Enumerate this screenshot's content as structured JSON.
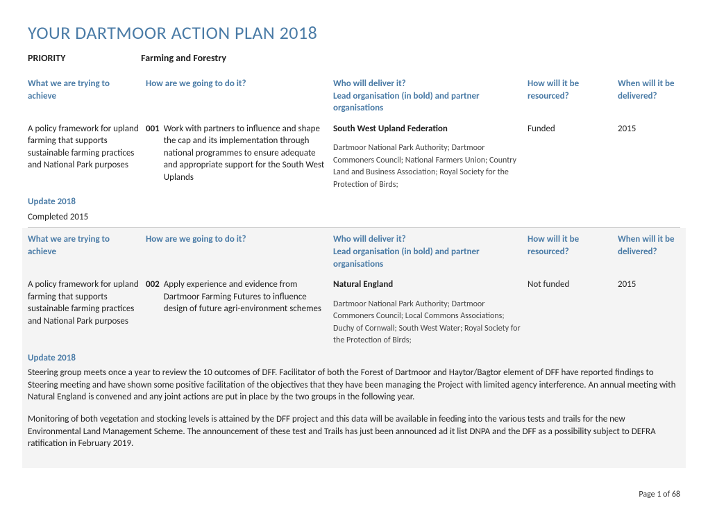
{
  "title": "YOUR DARTMOOR ACTION PLAN 2018",
  "priority": {
    "label": "PRIORITY",
    "value": "Farming and Forestry"
  },
  "headers": {
    "achieve": "What we are trying to achieve",
    "how": "How are we going to do it?",
    "who": "Who will deliver it?",
    "who_sub": "Lead organisation (in bold) and partner organisations",
    "resourced": "How will it be resourced?",
    "when": "When will it be delivered?"
  },
  "items": [
    {
      "achieve": "A policy framework for upland farming that supports sustainable farming practices and National Park purposes",
      "num": "001",
      "how": "Work with partners to influence and shape the cap and its implementation through national programmes to ensure adequate and appropriate support for the South West Uplands",
      "lead": "South West Upland Federation",
      "partners": "Dartmoor National Park Authority; Dartmoor Commoners Council; National Farmers Union; Country Land and Business Association; Royal Society for the Protection of Birds;",
      "resourced": "Funded",
      "when": "2015",
      "update_label": "Update 2018",
      "update": "Completed 2015"
    },
    {
      "achieve": "A policy framework for upland farming that supports sustainable farming practices and National Park purposes",
      "num": "002",
      "how": "Apply experience and evidence from Dartmoor Farming Futures to influence design of future agri-environment schemes",
      "lead": "Natural England",
      "partners": "Dartmoor National Park Authority; Dartmoor Commoners Council; Local Commons Associations; Duchy of Cornwall; South West Water; Royal Society for the Protection of Birds;",
      "resourced": "Not funded",
      "when": "2015",
      "update_label": "Update 2018",
      "update_p1": "Steering group meets once a year to review the 10 outcomes of DFF. Facilitator of both the Forest of Dartmoor and Haytor/Bagtor element of DFF have reported findings to Steering meeting and have shown some positive facilitation of the objectives that they have been managing the Project with limited  agency interference. An annual meeting with Natural England is convened and any joint actions are put in place by the two groups in the following year.",
      "update_p2": "Monitoring of both vegetation and stocking levels is attained by the DFF project and this data will be available in feeding into the various tests and trails for the new Environmental Land Management Scheme. The announcement of these test and Trails has just been announced ad it list DNPA and the DFF as a possibility subject to DEFRA ratification in February 2019."
    }
  ],
  "footer": "Page 1 of 68"
}
